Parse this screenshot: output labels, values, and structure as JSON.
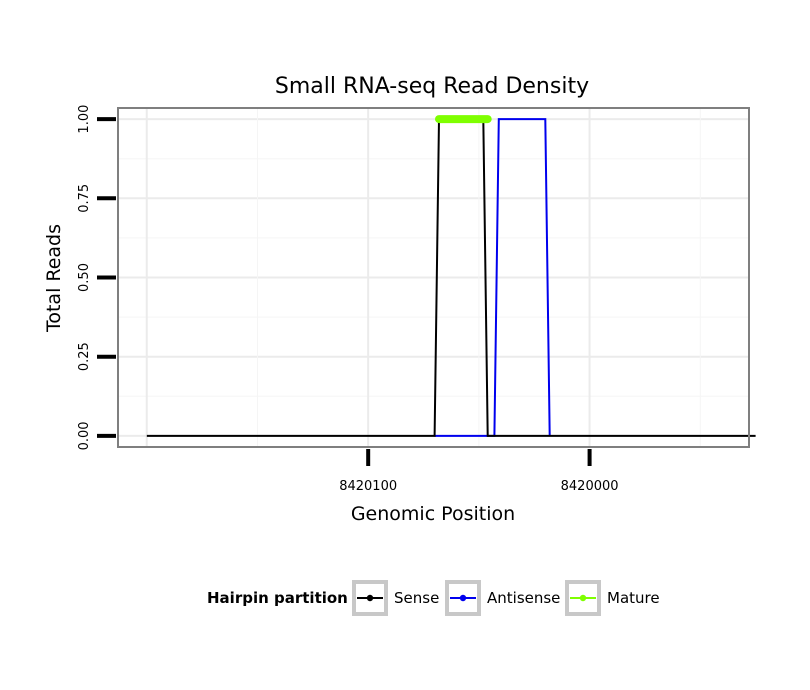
{
  "chart_data": {
    "type": "line",
    "title": "Small RNA-seq Read Density",
    "xlabel": "Genomic Position",
    "ylabel": "Total Reads",
    "x_reversed": true,
    "xlim": [
      8420213,
      8419928
    ],
    "ylim": [
      -0.035,
      1.035
    ],
    "x_ticks": [
      8420100,
      8420000
    ],
    "x_tick_labels": [
      "8420100",
      "8420000"
    ],
    "y_ticks": [
      0,
      0.25,
      0.5,
      0.75,
      1.0
    ],
    "y_tick_labels": [
      "0.00",
      "0.25",
      "0.50",
      "0.75",
      "1.00"
    ],
    "grid": true,
    "legend": {
      "title": "Hairpin partition",
      "placement": "bottom",
      "entries": [
        "Sense",
        "Antisense",
        "Mature"
      ]
    },
    "series": [
      {
        "name": "Sense",
        "color": "#000000",
        "x": [
          8420200,
          8420070,
          8420068,
          8420048,
          8420046,
          8419925
        ],
        "y": [
          0,
          0,
          1,
          1,
          0,
          0
        ]
      },
      {
        "name": "Antisense",
        "color": "#0000ee",
        "x": [
          8420070,
          8420043,
          8420041,
          8420020,
          8420018
        ],
        "y": [
          0,
          0,
          1,
          1,
          0
        ]
      },
      {
        "name": "Mature",
        "color": "#7fff00",
        "x": [
          8420068,
          8420046
        ],
        "y": [
          1,
          1
        ]
      }
    ]
  }
}
